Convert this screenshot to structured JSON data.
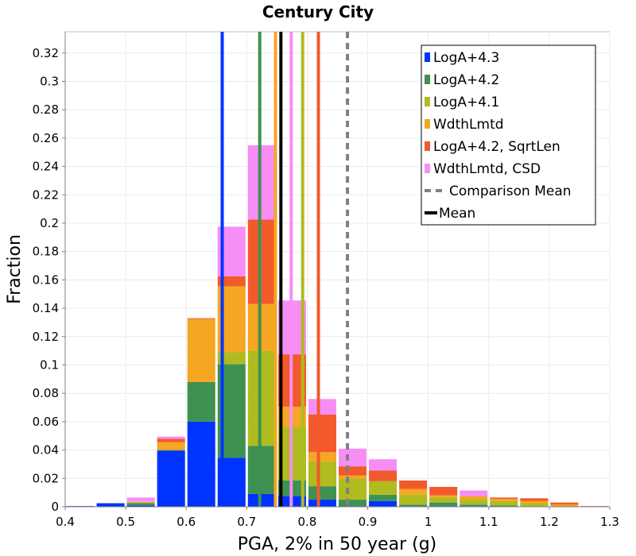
{
  "chart_data": {
    "type": "bar",
    "stacked": true,
    "title": "Century City",
    "xlabel": "PGA, 2% in 50 year (g)",
    "ylabel": "Fraction",
    "xlim": [
      0.4,
      1.3
    ],
    "ylim": [
      0,
      0.335
    ],
    "x_ticks": [
      "0.4",
      "0.5",
      "0.6",
      "0.7",
      "0.8",
      "0.9",
      "1",
      "1.1",
      "1.2",
      "1.3"
    ],
    "x_tick_values": [
      0.4,
      0.5,
      0.6,
      0.7,
      0.8,
      0.9,
      1.0,
      1.1,
      1.2,
      1.3
    ],
    "y_ticks": [
      "0",
      "0.02",
      "0.04",
      "0.06",
      "0.08",
      "0.1",
      "0.12",
      "0.14",
      "0.16",
      "0.18",
      "0.2",
      "0.22",
      "0.24",
      "0.26",
      "0.28",
      "0.3",
      "0.32"
    ],
    "y_tick_values": [
      0,
      0.02,
      0.04,
      0.06,
      0.08,
      0.1,
      0.12,
      0.14,
      0.16,
      0.18,
      0.2,
      0.22,
      0.24,
      0.26,
      0.28,
      0.3,
      0.32
    ],
    "bin_centers": [
      0.425,
      0.475,
      0.525,
      0.575,
      0.625,
      0.675,
      0.725,
      0.775,
      0.825,
      0.875,
      0.925,
      0.975,
      1.025,
      1.075,
      1.125,
      1.175,
      1.225,
      1.275
    ],
    "series": [
      {
        "name": "LogA+4.3",
        "color": "#0033ff",
        "values": [
          0.0005,
          0.0025,
          0.001,
          0.0395,
          0.06,
          0.0345,
          0.009,
          0.0075,
          0.005,
          0.0005,
          0.004,
          0.0005,
          0.0005,
          0.0005,
          0,
          0,
          0,
          0
        ]
      },
      {
        "name": "LogA+4.2",
        "color": "#3f9152",
        "values": [
          0,
          0,
          0.0015,
          0.0005,
          0.028,
          0.066,
          0.034,
          0.011,
          0.0095,
          0.0045,
          0.0045,
          0.001,
          0.0025,
          0.001,
          0.001,
          0,
          0,
          0
        ]
      },
      {
        "name": "LogA+4.1",
        "color": "#afbb1f",
        "values": [
          0,
          0,
          0.0005,
          0,
          0,
          0.0085,
          0.067,
          0.038,
          0.0175,
          0.015,
          0.0095,
          0.007,
          0.0035,
          0.0035,
          0.003,
          0.0025,
          0,
          0
        ]
      },
      {
        "name": "WdthLmtd",
        "color": "#f5a623",
        "values": [
          0,
          0,
          0.0005,
          0.0055,
          0.0445,
          0.0465,
          0.033,
          0.014,
          0.0065,
          0.002,
          0,
          0.004,
          0.0015,
          0.0025,
          0.0015,
          0.0015,
          0.0015,
          0
        ]
      },
      {
        "name": "LogA+4.2, SqrtLen",
        "color": "#f25a2b",
        "values": [
          0,
          0,
          0,
          0.0025,
          0.0005,
          0.007,
          0.0595,
          0.037,
          0.0265,
          0.0065,
          0.0075,
          0.006,
          0.006,
          0,
          0.001,
          0.002,
          0.0015,
          0.0005
        ]
      },
      {
        "name": "WdthLmtd, CSD",
        "color": "#f78ef5",
        "values": [
          0,
          0,
          0.003,
          0.0015,
          0,
          0.035,
          0.0525,
          0.038,
          0.011,
          0.0125,
          0.008,
          0,
          0,
          0.004,
          0,
          0,
          0,
          0
        ]
      }
    ],
    "vertical_lines": [
      {
        "name": "LogA+4.3 mean",
        "x": 0.6595,
        "color": "#0033ff",
        "style": "solid"
      },
      {
        "name": "LogA+4.2 mean",
        "x": 0.7215,
        "color": "#3f9152",
        "style": "solid"
      },
      {
        "name": "WdthLmtd mean",
        "x": 0.7475,
        "color": "#f5a623",
        "style": "solid"
      },
      {
        "name": "WdthLmtd, CSD mean",
        "x": 0.7735,
        "color": "#f78ef5",
        "style": "solid"
      },
      {
        "name": "LogA+4.1 mean",
        "x": 0.7925,
        "color": "#afbb1f",
        "style": "solid"
      },
      {
        "name": "LogA+4.2, SqrtLen mean",
        "x": 0.8185,
        "color": "#f25a2b",
        "style": "solid"
      },
      {
        "name": "Mean",
        "x": 0.7565,
        "color": "#000000",
        "style": "solid"
      },
      {
        "name": "Comparison Mean",
        "x": 0.8665,
        "color": "#808080",
        "style": "dashed"
      }
    ],
    "legend_position": "top-right",
    "legend": [
      {
        "label": "LogA+4.3",
        "color": "#0033ff",
        "kind": "box"
      },
      {
        "label": "LogA+4.2",
        "color": "#3f9152",
        "kind": "box"
      },
      {
        "label": "LogA+4.1",
        "color": "#afbb1f",
        "kind": "box"
      },
      {
        "label": "WdthLmtd",
        "color": "#f5a623",
        "kind": "box"
      },
      {
        "label": "LogA+4.2, SqrtLen",
        "color": "#f25a2b",
        "kind": "box"
      },
      {
        "label": "WdthLmtd, CSD",
        "color": "#f78ef5",
        "kind": "box"
      },
      {
        "label": "Comparison Mean",
        "color": "#808080",
        "kind": "dashed"
      },
      {
        "label": "Mean",
        "color": "#000000",
        "kind": "line"
      }
    ],
    "grid": true
  }
}
